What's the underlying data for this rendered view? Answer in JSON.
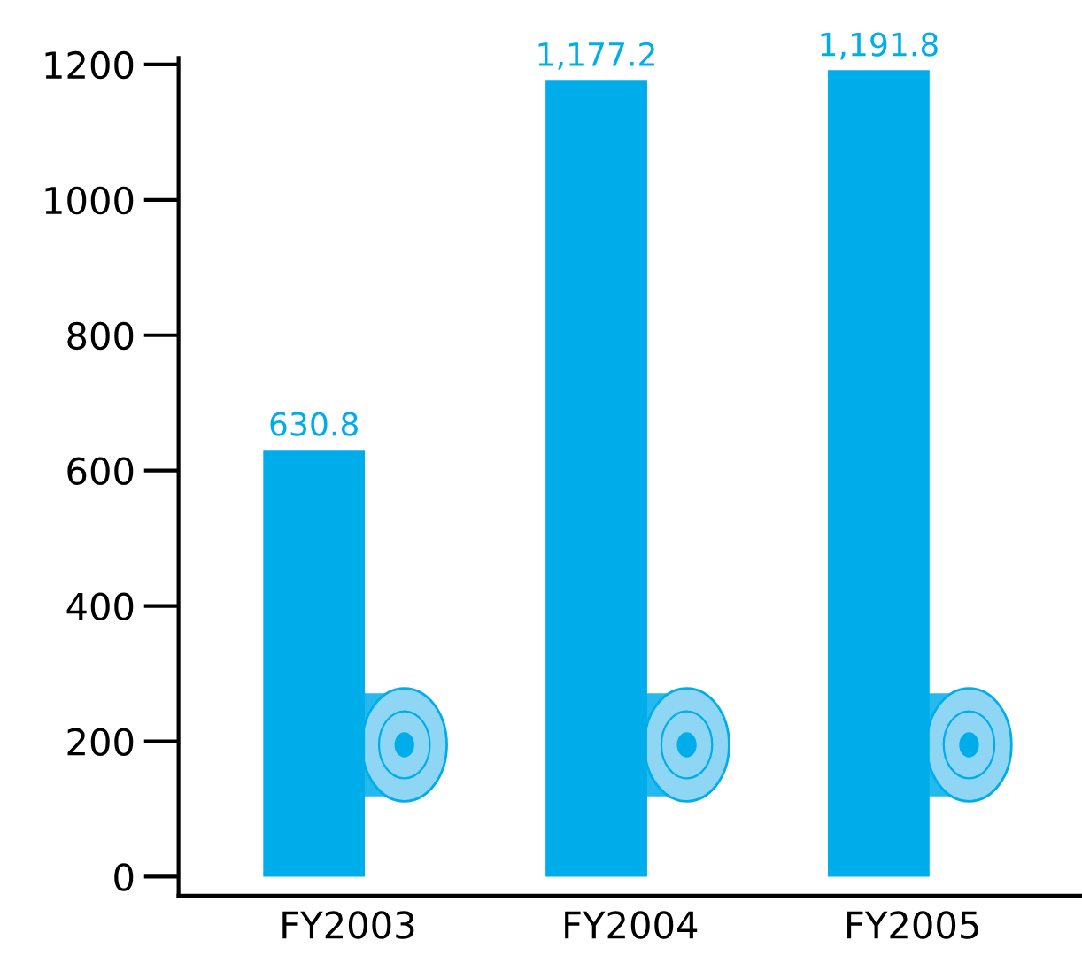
{
  "chart_data": {
    "type": "bar",
    "categories": [
      "FY2003",
      "FY2004",
      "FY2005"
    ],
    "values": [
      630.8,
      1177.2,
      1191.8
    ],
    "value_labels": [
      "630.8",
      "1,177.2",
      "1,191.8"
    ],
    "color": "#00adeb",
    "ylim": [
      -28,
      1210
    ],
    "yticks": [
      0,
      200,
      400,
      600,
      800,
      1000,
      1200
    ],
    "grid": false
  }
}
